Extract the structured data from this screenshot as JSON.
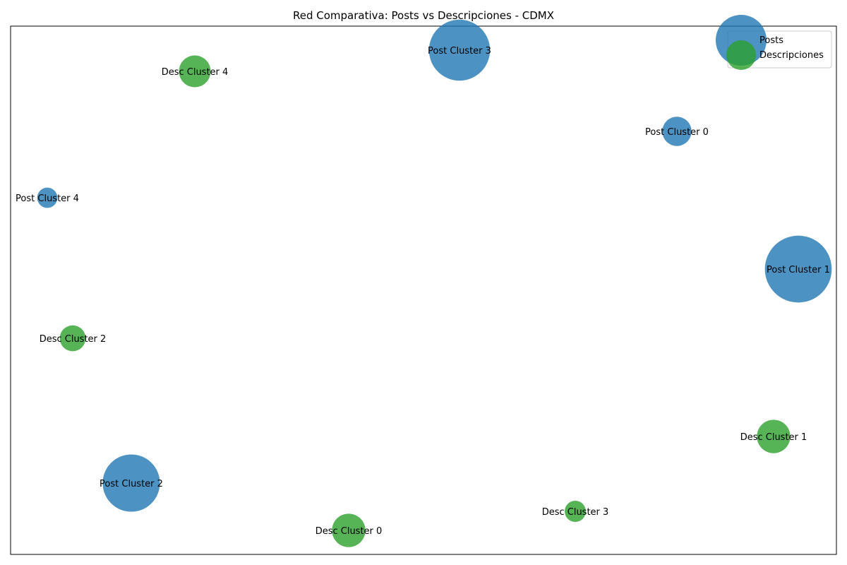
{
  "title": "Red Comparativa: Posts vs Descripciones - CDMX",
  "colors": {
    "posts": "#1f77b4",
    "descripciones": "#2ca02c",
    "axes_frame": "#000000",
    "background": "#ffffff"
  },
  "legend": {
    "placement": "top-right",
    "items": [
      {
        "label": "Posts",
        "group": "posts"
      },
      {
        "label": "Descripciones",
        "group": "descripciones"
      }
    ]
  },
  "chart_data": {
    "type": "scatter",
    "title": "Red Comparativa: Posts vs Descripciones - CDMX",
    "xlabel": "",
    "ylabel": "",
    "axes_ticks_visible": false,
    "grid": false,
    "legend_placement": "top-right",
    "nodes": [
      {
        "label": "Post Cluster 3",
        "group": "posts",
        "size_rel": 1.0
      },
      {
        "label": "Post Cluster 0",
        "group": "posts",
        "size_rel": 0.23
      },
      {
        "label": "Post Cluster 4",
        "group": "posts",
        "size_rel": 0.11
      },
      {
        "label": "Post Cluster 1",
        "group": "posts",
        "size_rel": 1.2
      },
      {
        "label": "Post Cluster 2",
        "group": "posts",
        "size_rel": 0.88
      },
      {
        "label": "Desc Cluster 4",
        "group": "descripciones",
        "size_rel": 0.27
      },
      {
        "label": "Desc Cluster 2",
        "group": "descripciones",
        "size_rel": 0.18
      },
      {
        "label": "Desc Cluster 1",
        "group": "descripciones",
        "size_rel": 0.3
      },
      {
        "label": "Desc Cluster 3",
        "group": "descripciones",
        "size_rel": 0.12
      },
      {
        "label": "Desc Cluster 0",
        "group": "descripciones",
        "size_rel": 0.3
      }
    ]
  }
}
